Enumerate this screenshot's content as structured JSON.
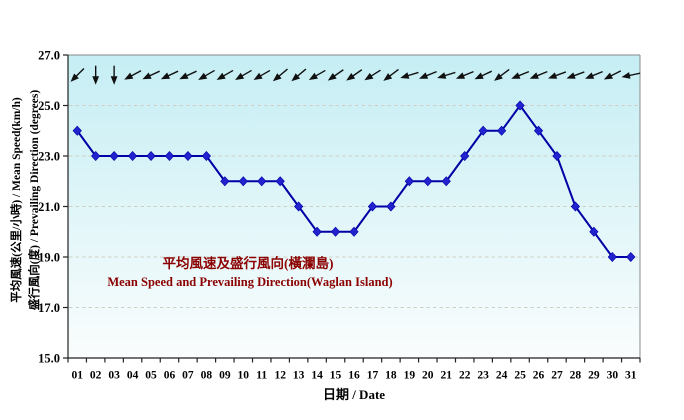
{
  "chart_data": {
    "type": "line",
    "title": "平均風速及盛行風向(橫瀾島)",
    "title_en": "Mean Speed and Prevailing Direction(Waglan Island)",
    "xlabel": "日期 / Date",
    "ylabel_line1": "平均風速(公里/小時) / Mean Speed(km/h)",
    "ylabel_line2": "盛行風向(度) / Prevailing Direction (degrees)",
    "categories": [
      "01",
      "02",
      "03",
      "04",
      "05",
      "06",
      "07",
      "08",
      "09",
      "10",
      "11",
      "12",
      "13",
      "14",
      "15",
      "16",
      "17",
      "18",
      "19",
      "20",
      "21",
      "22",
      "23",
      "24",
      "25",
      "26",
      "27",
      "28",
      "29",
      "30",
      "31"
    ],
    "series": [
      {
        "name": "Mean Speed (km/h)",
        "values": [
          24,
          23,
          23,
          23,
          23,
          23,
          23,
          23,
          22,
          22,
          22,
          22,
          21,
          20,
          20,
          20,
          21,
          21,
          22,
          22,
          22,
          23,
          24,
          24,
          25,
          24,
          23,
          21,
          20,
          19,
          19
        ]
      }
    ],
    "ylim": [
      15.0,
      27.0
    ],
    "ytick_labels": [
      "15.0",
      "17.0",
      "19.0",
      "21.0",
      "23.0",
      "25.0",
      "27.0"
    ],
    "yticks": [
      15,
      17,
      19,
      21,
      23,
      25,
      27
    ],
    "grid": "horizontal-dashed",
    "legend": "none",
    "wind_arrows": {
      "row_value": 26.2,
      "rotation_convention": "degrees clockwise; 0 = arrow pointing right, 90 = pointing down",
      "rotations": [
        135,
        90,
        90,
        152,
        155,
        155,
        155,
        150,
        150,
        150,
        150,
        140,
        140,
        150,
        145,
        145,
        148,
        143,
        163,
        158,
        163,
        158,
        155,
        143,
        158,
        158,
        160,
        160,
        158,
        153,
        168
      ]
    },
    "colors": {
      "line": "#0000A6",
      "marker": "#2222CE",
      "title": "#8B0000",
      "plot_bg_top": "#C5EEF4",
      "plot_bg_bottom": "#FAFDFD",
      "grid": "#CFCFC4",
      "axis": "#222222",
      "border": "#888888",
      "arrow": "#111111",
      "tick_text": "#000000"
    }
  }
}
